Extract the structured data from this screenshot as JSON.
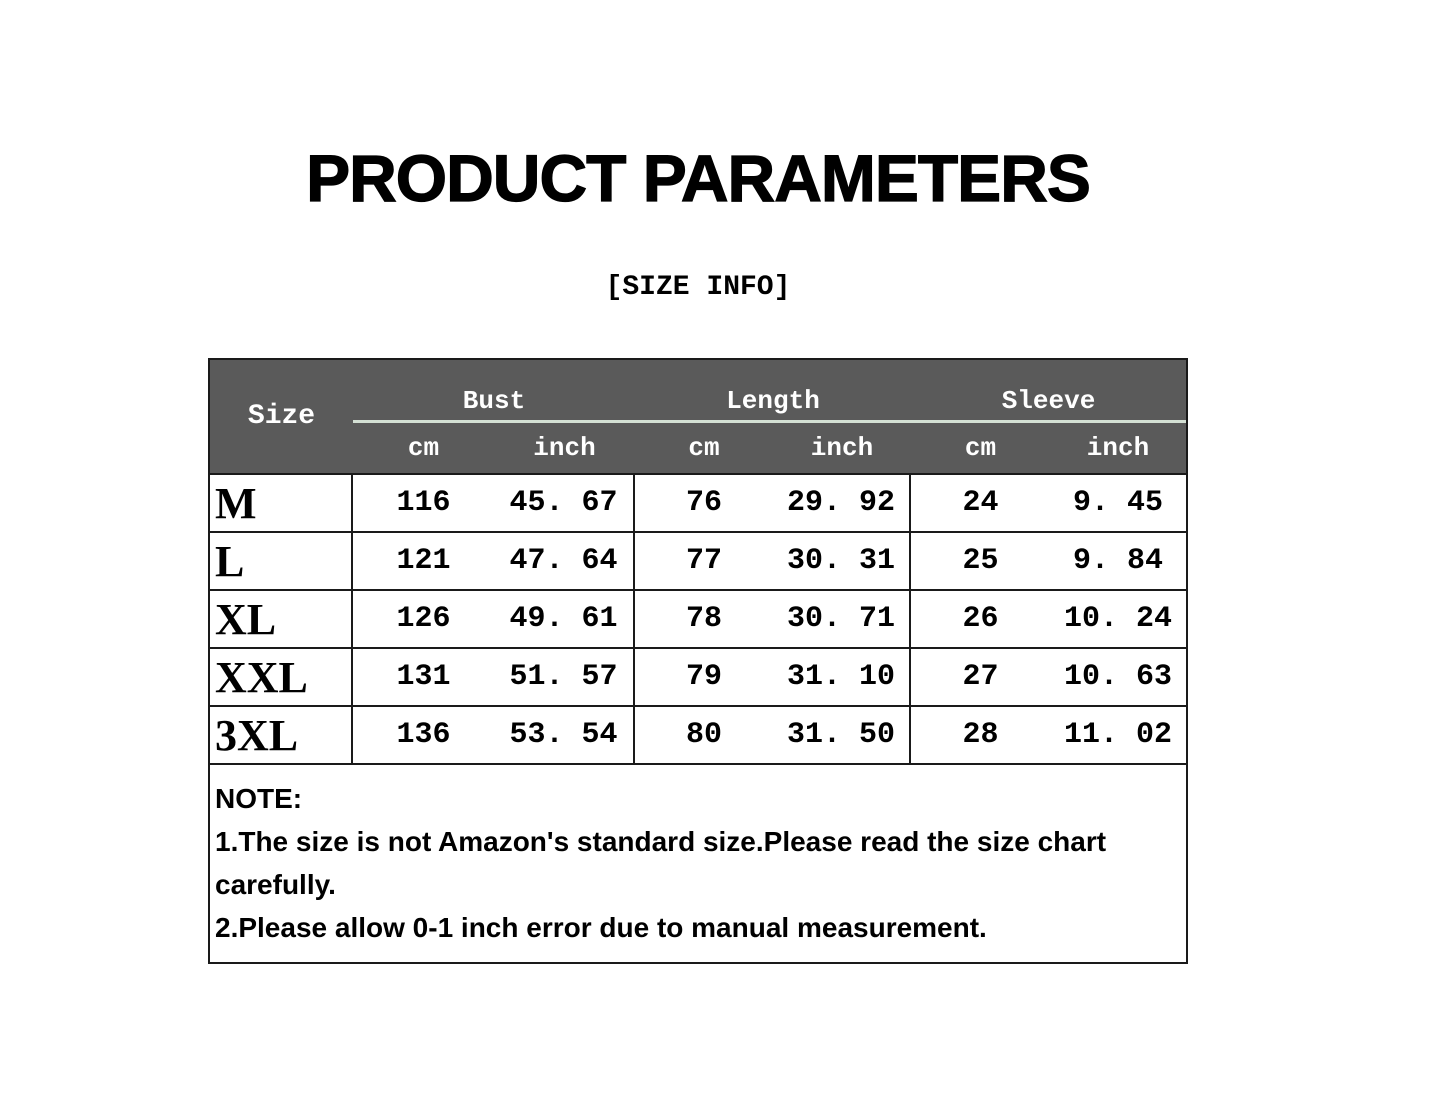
{
  "title": "PRODUCT PARAMETERS",
  "subtitle": "[SIZE INFO]",
  "table": {
    "corner_label": "Size",
    "groups": [
      {
        "label": "Bust"
      },
      {
        "label": "Length"
      },
      {
        "label": "Sleeve"
      }
    ],
    "unit_headers": [
      "cm",
      "inch",
      "cm",
      "inch",
      "cm",
      "inch"
    ],
    "rows": [
      {
        "size": "M",
        "cells": [
          "116",
          "45. 67",
          "76",
          "29. 92",
          "24",
          "9. 45"
        ]
      },
      {
        "size": "L",
        "cells": [
          "121",
          "47. 64",
          "77",
          "30. 31",
          "25",
          "9. 84"
        ]
      },
      {
        "size": "XL",
        "cells": [
          "126",
          "49. 61",
          "78",
          "30. 71",
          "26",
          "10. 24"
        ]
      },
      {
        "size": "XXL",
        "cells": [
          "131",
          "51. 57",
          "79",
          "31. 10",
          "27",
          "10. 63"
        ]
      },
      {
        "size": "3XL",
        "cells": [
          "136",
          "53. 54",
          "80",
          "31. 50",
          "28",
          "11. 02"
        ]
      }
    ]
  },
  "note": {
    "heading": "NOTE:",
    "lines": [
      "1.The size is not Amazon's standard size.Please read the size chart carefully.",
      "2.Please allow 0-1 inch error due to manual measurement."
    ]
  },
  "colors": {
    "page_bg": "#ffffff",
    "header_bg": "#5a5a5a",
    "header_text": "#ffffff",
    "divider_line": "#d4e0d4",
    "border": "#1a1a1a",
    "body_text": "#000000"
  },
  "chart_data": {
    "type": "table",
    "title": "PRODUCT PARAMETERS",
    "subtitle": "[SIZE INFO]",
    "columns": [
      "Size",
      "Bust cm",
      "Bust inch",
      "Length cm",
      "Length inch",
      "Sleeve cm",
      "Sleeve inch"
    ],
    "rows": [
      [
        "M",
        116,
        45.67,
        76,
        29.92,
        24,
        9.45
      ],
      [
        "L",
        121,
        47.64,
        77,
        30.31,
        25,
        9.84
      ],
      [
        "XL",
        126,
        49.61,
        78,
        30.71,
        26,
        10.24
      ],
      [
        "XXL",
        131,
        51.57,
        79,
        31.1,
        27,
        10.63
      ],
      [
        "3XL",
        136,
        53.54,
        80,
        31.5,
        28,
        11.02
      ]
    ],
    "notes": [
      "NOTE:",
      "1.The size is not Amazon's standard size.Please read the size chart carefully.",
      "2.Please allow 0-1 inch error due to manual measurement."
    ]
  }
}
